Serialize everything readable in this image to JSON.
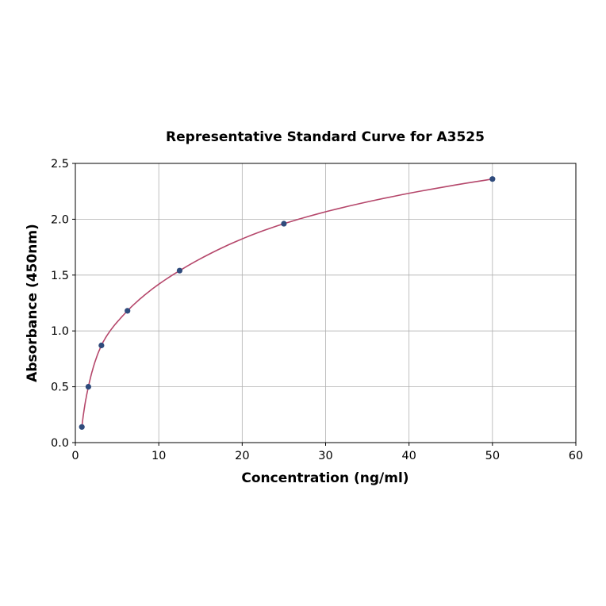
{
  "chart_data": {
    "type": "scatter",
    "title": "Representative Standard Curve for A3525",
    "xlabel": "Concentration (ng/ml)",
    "ylabel": "Absorbance (450nm)",
    "xlim": [
      0,
      60
    ],
    "ylim": [
      0,
      2.5
    ],
    "xticks": [
      "0",
      "10",
      "20",
      "30",
      "40",
      "50",
      "60"
    ],
    "yticks": [
      "0.0",
      "0.5",
      "1.0",
      "1.5",
      "2.0",
      "2.5"
    ],
    "grid": true,
    "points": [
      {
        "x": 0.78,
        "y": 0.14
      },
      {
        "x": 1.56,
        "y": 0.5
      },
      {
        "x": 3.125,
        "y": 0.87
      },
      {
        "x": 6.25,
        "y": 1.18
      },
      {
        "x": 12.5,
        "y": 1.54
      },
      {
        "x": 25,
        "y": 1.96
      },
      {
        "x": 50,
        "y": 2.36
      }
    ],
    "fit_curve": true,
    "colors": {
      "points": "#2f4b7c",
      "curve": "#b5476b",
      "grid": "#b0b0b0"
    }
  }
}
